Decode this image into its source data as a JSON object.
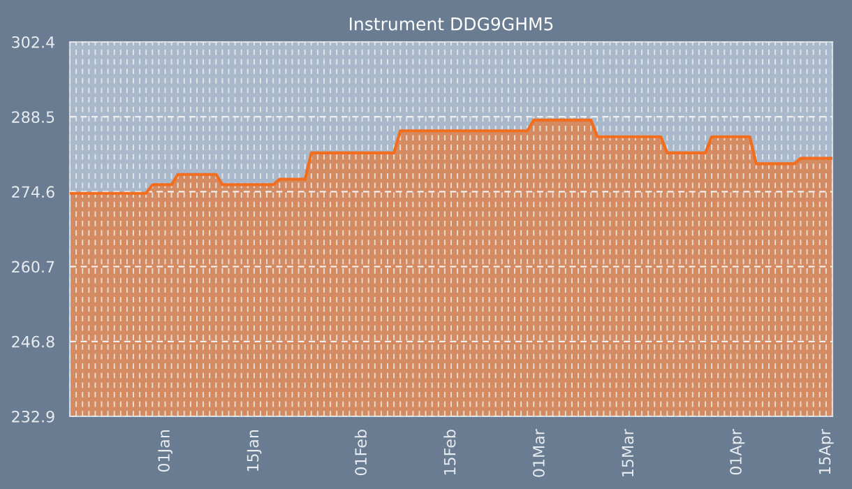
{
  "chart_data": {
    "type": "area",
    "title": "Instrument DDG9GHM5",
    "categories": [
      null,
      null,
      null,
      null,
      null,
      null,
      null,
      null,
      null,
      null,
      null,
      null,
      null,
      null,
      null,
      "01Jan",
      null,
      null,
      null,
      null,
      null,
      null,
      null,
      null,
      null,
      null,
      null,
      null,
      null,
      "15Jan",
      null,
      null,
      null,
      null,
      null,
      null,
      null,
      null,
      null,
      null,
      null,
      null,
      null,
      null,
      null,
      null,
      "01Feb",
      null,
      null,
      null,
      null,
      null,
      null,
      null,
      null,
      null,
      null,
      null,
      null,
      null,
      "15Feb",
      null,
      null,
      null,
      null,
      null,
      null,
      null,
      null,
      null,
      null,
      null,
      null,
      null,
      "01Mar",
      null,
      null,
      null,
      null,
      null,
      null,
      null,
      null,
      null,
      null,
      null,
      null,
      null,
      "15Mar",
      null,
      null,
      null,
      null,
      null,
      null,
      null,
      null,
      null,
      null,
      null,
      null,
      null,
      null,
      null,
      null,
      "01Apr",
      null,
      null,
      null,
      null,
      null,
      null,
      null,
      null,
      null,
      null,
      null,
      null,
      null,
      "15Apr",
      null
    ],
    "series": [
      {
        "color": "#f26d1d",
        "values": [
          274.3,
          274.3,
          274.3,
          274.3,
          274.3,
          274.3,
          274.3,
          274.3,
          274.3,
          274.3,
          274.3,
          274.3,
          274.3,
          275.9,
          275.9,
          275.9,
          275.9,
          277.8,
          277.8,
          277.8,
          277.8,
          277.8,
          277.8,
          277.8,
          275.9,
          275.9,
          275.9,
          275.9,
          275.9,
          275.9,
          275.9,
          275.9,
          275.9,
          276.9,
          276.9,
          276.9,
          276.9,
          276.9,
          281.8,
          281.8,
          281.8,
          281.8,
          281.8,
          281.8,
          281.8,
          281.8,
          281.8,
          281.8,
          281.8,
          281.8,
          281.8,
          281.8,
          285.9,
          285.9,
          285.9,
          285.9,
          285.9,
          285.9,
          285.9,
          285.9,
          285.9,
          285.9,
          285.9,
          285.9,
          285.9,
          285.9,
          285.9,
          285.9,
          285.9,
          285.9,
          285.9,
          285.9,
          285.9,
          287.9,
          287.9,
          287.9,
          287.9,
          287.9,
          287.9,
          287.9,
          287.9,
          287.9,
          287.9,
          284.8,
          284.8,
          284.8,
          284.8,
          284.8,
          284.8,
          284.8,
          284.8,
          284.8,
          284.8,
          284.8,
          281.8,
          281.8,
          281.8,
          281.8,
          281.8,
          281.8,
          281.8,
          284.8,
          284.8,
          284.8,
          284.8,
          284.8,
          284.8,
          284.8,
          279.8,
          279.8,
          279.8,
          279.8,
          279.8,
          279.8,
          279.8,
          280.8,
          280.8,
          280.8,
          280.8,
          280.8,
          280.8
        ]
      }
    ],
    "ylim": [
      232.9,
      302.4
    ],
    "yticks": [
      232.9,
      246.8,
      260.7,
      274.6,
      288.5,
      302.4
    ],
    "grid": true
  }
}
